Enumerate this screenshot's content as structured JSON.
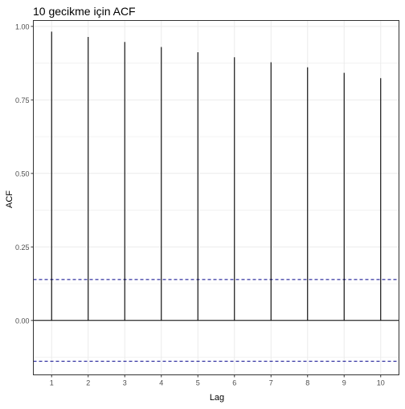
{
  "chart_data": {
    "type": "bar",
    "title": "10 gecikme için ACF",
    "xlabel": "Lag",
    "ylabel": "ACF",
    "x": [
      1,
      2,
      3,
      4,
      5,
      6,
      7,
      8,
      9,
      10
    ],
    "values": [
      0.982,
      0.964,
      0.947,
      0.93,
      0.912,
      0.895,
      0.878,
      0.861,
      0.842,
      0.824
    ],
    "x_ticks": [
      "1",
      "2",
      "3",
      "4",
      "5",
      "6",
      "7",
      "8",
      "9",
      "10"
    ],
    "y_ticks": [
      "0.00",
      "0.25",
      "0.50",
      "0.75",
      "1.00"
    ],
    "y_tick_values": [
      0,
      0.25,
      0.5,
      0.75,
      1.0
    ],
    "xlim": [
      0.5,
      10.5
    ],
    "ylim": [
      -0.185,
      1.02
    ],
    "confidence_limit": 0.139,
    "grid": true,
    "colors": {
      "lines": "#000000",
      "confidence": "#00008b",
      "grid": "#ebebeb",
      "panel_border": "#333333"
    }
  }
}
